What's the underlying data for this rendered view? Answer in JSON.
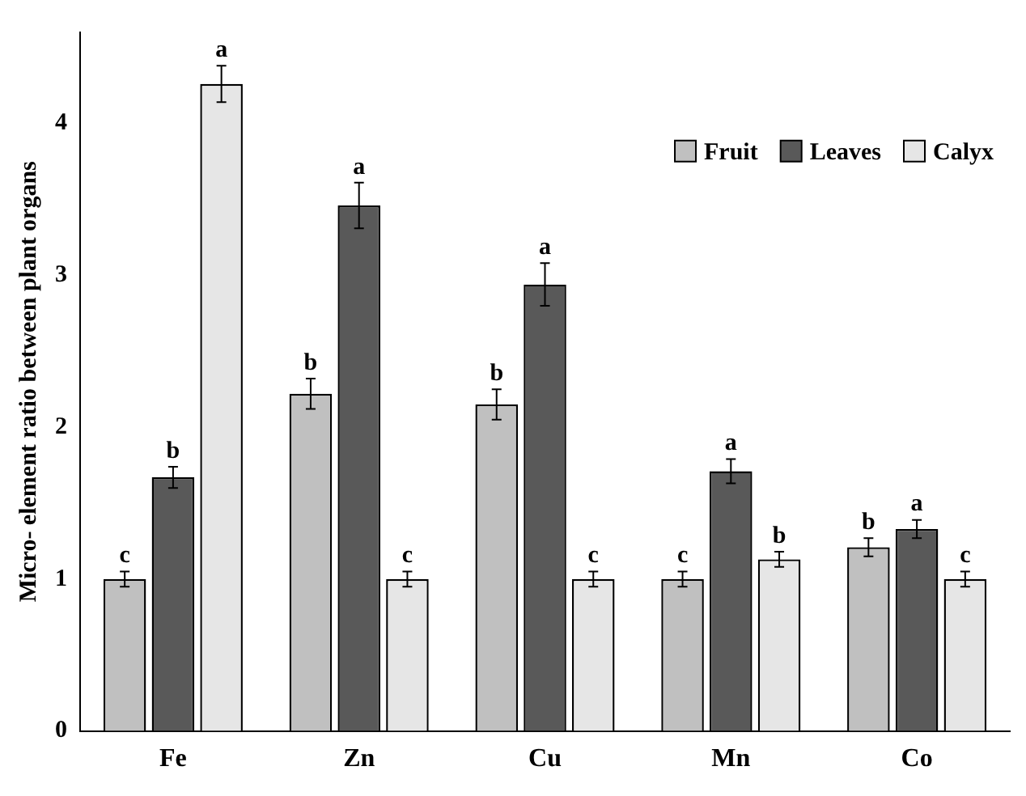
{
  "chart_data": {
    "type": "bar",
    "ylabel": "Micro- element ratio between plant organs",
    "categories": [
      "Fe",
      "Zn",
      "Cu",
      "Mn",
      "Co"
    ],
    "series": [
      {
        "name": "Fruit",
        "color": "#c0c0c0",
        "values": [
          1.0,
          2.22,
          2.15,
          1.0,
          1.21
        ],
        "errors": [
          0.05,
          0.1,
          0.1,
          0.05,
          0.06
        ],
        "value_labels": [
          "c",
          "b",
          "b",
          "c",
          "b"
        ]
      },
      {
        "name": "Leaves",
        "color": "#595959",
        "values": [
          1.67,
          3.46,
          2.94,
          1.71,
          1.33
        ],
        "errors": [
          0.07,
          0.15,
          0.14,
          0.08,
          0.06
        ],
        "value_labels": [
          "b",
          "a",
          "a",
          "a",
          "a"
        ]
      },
      {
        "name": "Calyx",
        "color": "#e6e6e6",
        "values": [
          4.26,
          1.0,
          1.0,
          1.13,
          1.0
        ],
        "errors": [
          0.12,
          0.05,
          0.05,
          0.05,
          0.05
        ],
        "value_labels": [
          "a",
          "c",
          "c",
          "b",
          "c"
        ]
      }
    ],
    "ylim": [
      0,
      4.6
    ],
    "yticks": [
      0,
      1,
      2,
      3,
      4
    ],
    "grid": false,
    "legend": "top right"
  }
}
